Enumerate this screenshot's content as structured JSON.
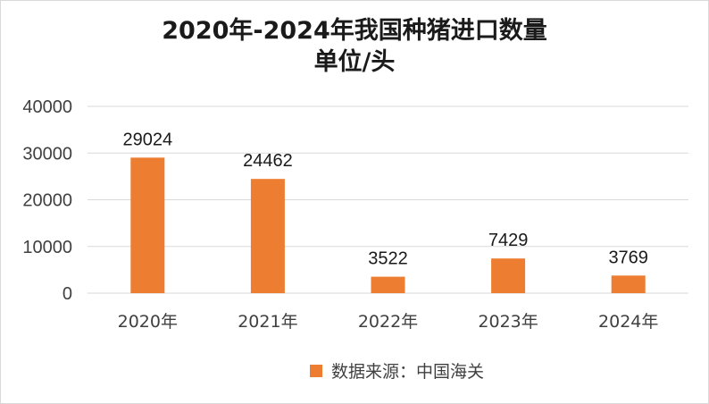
{
  "chart_data": {
    "type": "bar",
    "title": "2020年-2024年我国种猪进口数量",
    "subtitle": "单位/头",
    "categories": [
      "2020年",
      "2021年",
      "2022年",
      "2023年",
      "2024年"
    ],
    "series": [
      {
        "name": "数据来源：中国海关",
        "values": [
          29024,
          24462,
          3522,
          7429,
          3769
        ]
      }
    ],
    "data_labels": [
      "29024",
      "24462",
      "3522",
      "7429",
      "3769"
    ],
    "yticks": [
      "0",
      "10000",
      "20000",
      "30000",
      "40000"
    ],
    "ylim": [
      0,
      40000
    ],
    "xlabel": "",
    "ylabel": "",
    "grid": true,
    "legend_position": "bottom",
    "bar_color": "#ed7d31",
    "grid_color": "#d9d9d9"
  }
}
